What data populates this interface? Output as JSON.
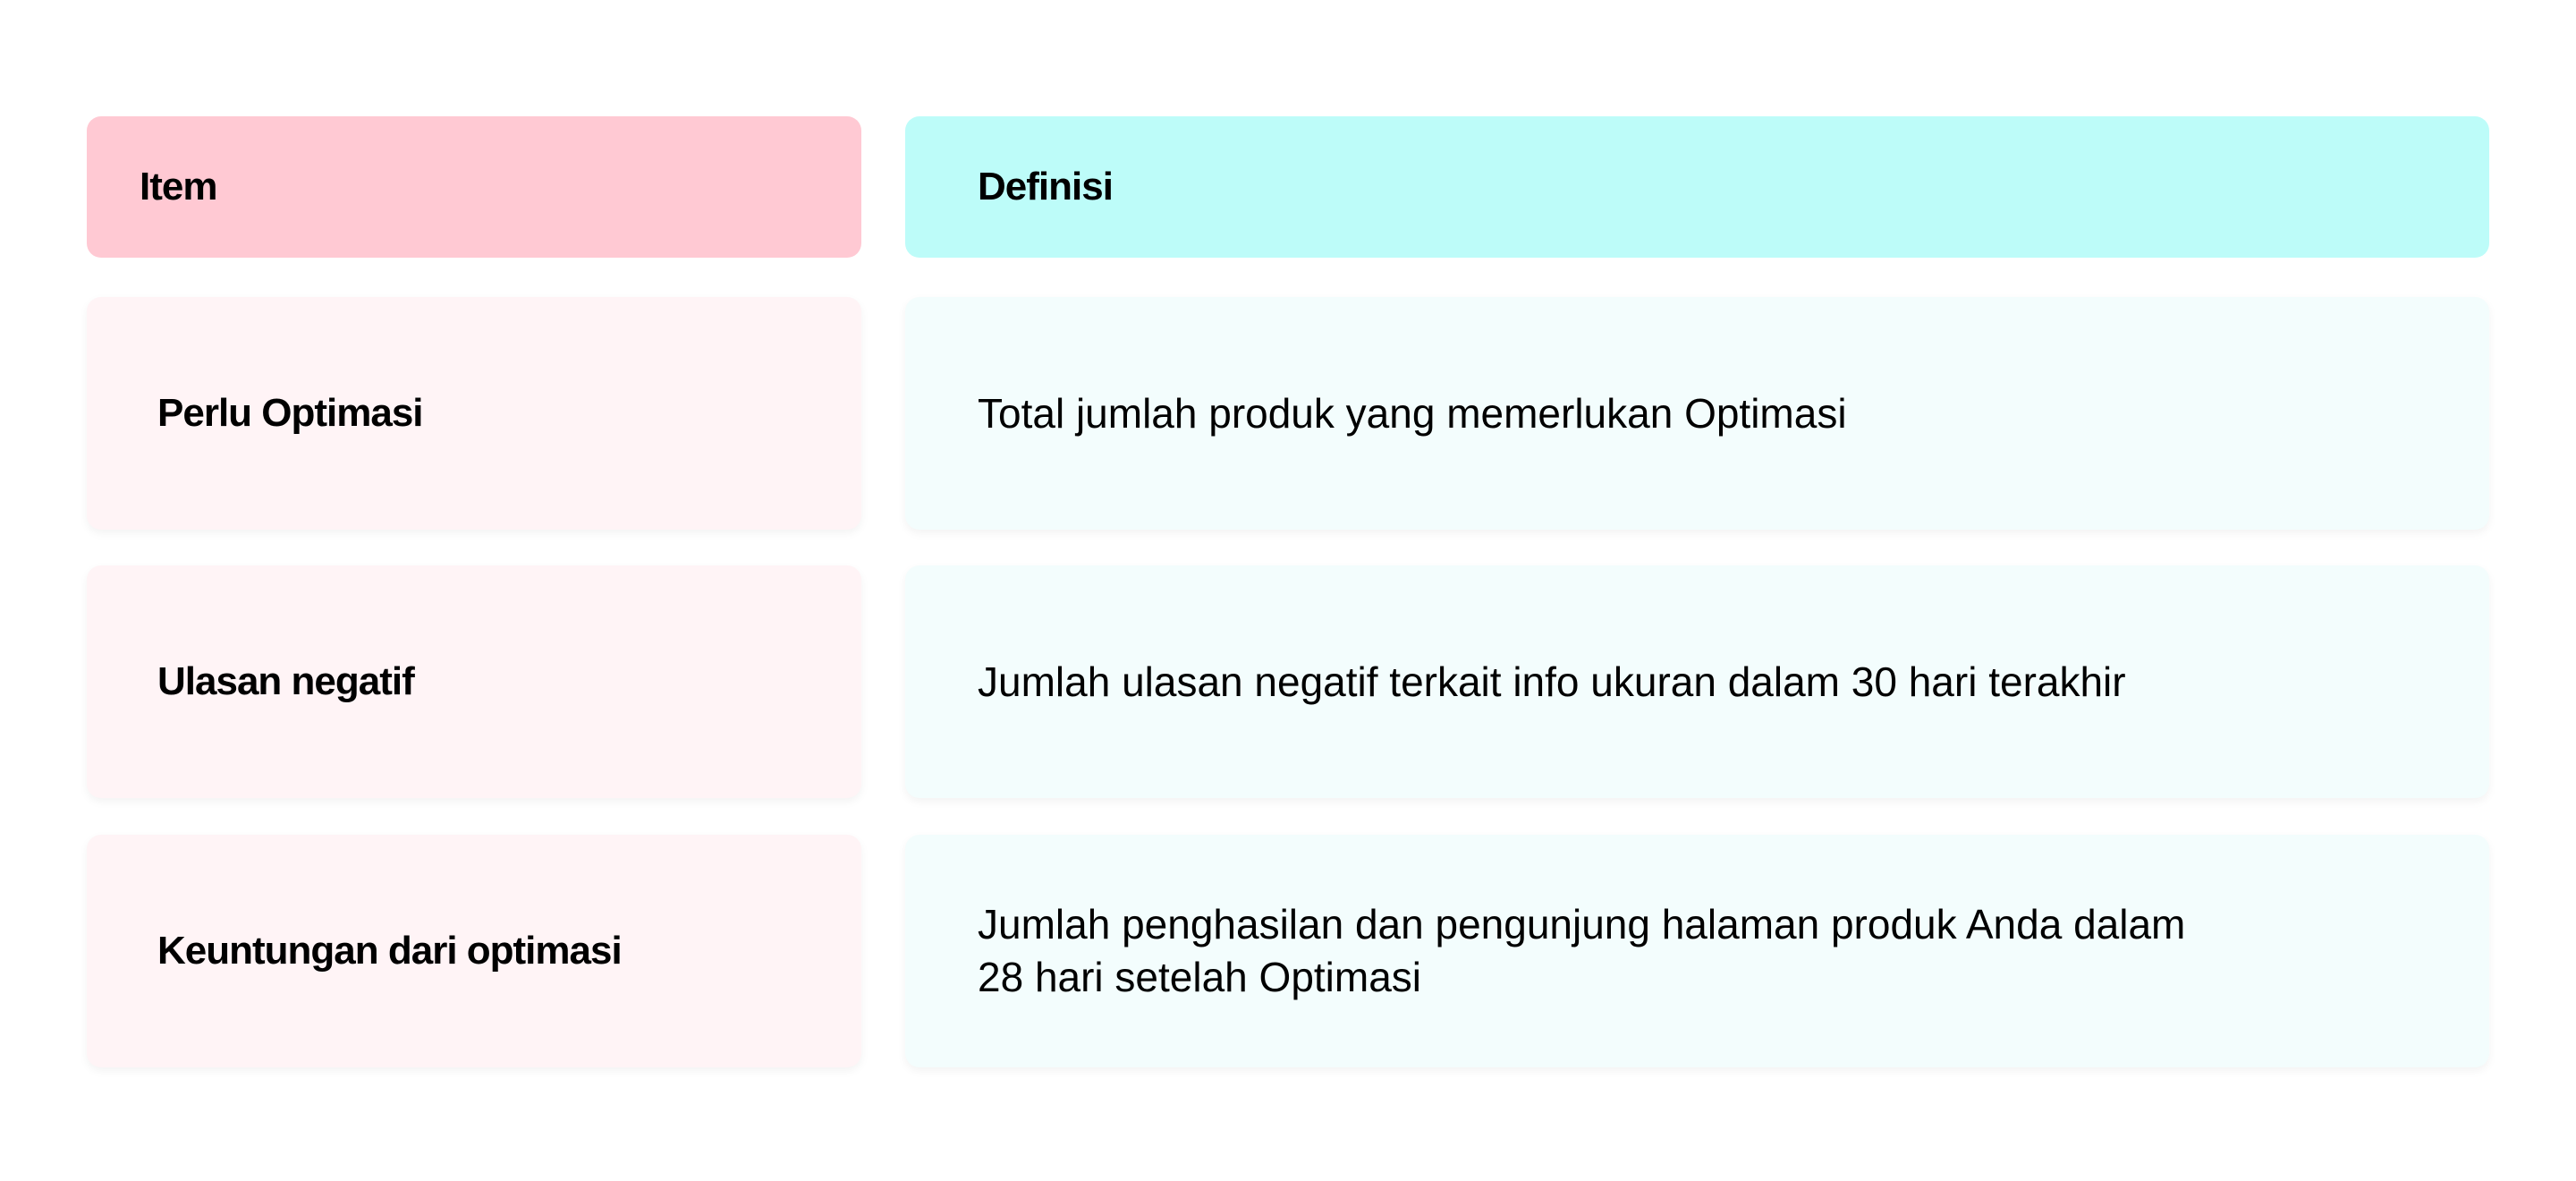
{
  "table": {
    "headers": {
      "item": "Item",
      "definition": "Definisi"
    },
    "rows": [
      {
        "item": "Perlu Optimasi",
        "definition": "Total jumlah produk yang memerlukan Optimasi"
      },
      {
        "item": "Ulasan negatif",
        "definition": "Jumlah ulasan negatif terkait info ukuran dalam 30 hari terakhir"
      },
      {
        "item": "Keuntungan dari optimasi",
        "definition": "Jumlah penghasilan dan pengunjung halaman produk Anda dalam 28 hari setelah Optimasi"
      }
    ]
  },
  "colors": {
    "header_item": "#FFC9D3",
    "header_definition": "#BDFCF9",
    "row_item": "#FFF4F6",
    "row_definition": "#F3FDFD"
  }
}
